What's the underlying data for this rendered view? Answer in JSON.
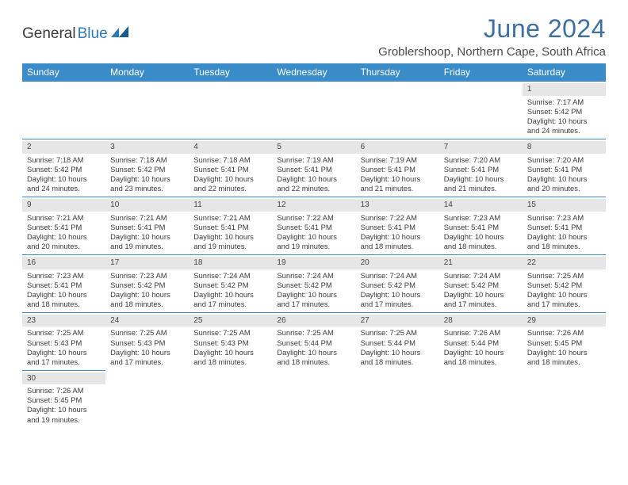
{
  "logo": {
    "part1": "General",
    "part2": "Blue"
  },
  "title": "June 2024",
  "location": "Groblershoop, Northern Cape, South Africa",
  "colors": {
    "header_bg": "#3a8cc9",
    "header_text": "#ffffff",
    "title_color": "#3f6f9c",
    "daynum_bg": "#e6e6e6",
    "border": "#3a8cc9",
    "body_text": "#3b3b3b",
    "logo_accent": "#2f78b7"
  },
  "weekdays": [
    "Sunday",
    "Monday",
    "Tuesday",
    "Wednesday",
    "Thursday",
    "Friday",
    "Saturday"
  ],
  "weeks": [
    [
      null,
      null,
      null,
      null,
      null,
      null,
      {
        "n": "1",
        "sr": "Sunrise: 7:17 AM",
        "ss": "Sunset: 5:42 PM",
        "dl1": "Daylight: 10 hours",
        "dl2": "and 24 minutes."
      }
    ],
    [
      {
        "n": "2",
        "sr": "Sunrise: 7:18 AM",
        "ss": "Sunset: 5:42 PM",
        "dl1": "Daylight: 10 hours",
        "dl2": "and 24 minutes."
      },
      {
        "n": "3",
        "sr": "Sunrise: 7:18 AM",
        "ss": "Sunset: 5:42 PM",
        "dl1": "Daylight: 10 hours",
        "dl2": "and 23 minutes."
      },
      {
        "n": "4",
        "sr": "Sunrise: 7:18 AM",
        "ss": "Sunset: 5:41 PM",
        "dl1": "Daylight: 10 hours",
        "dl2": "and 22 minutes."
      },
      {
        "n": "5",
        "sr": "Sunrise: 7:19 AM",
        "ss": "Sunset: 5:41 PM",
        "dl1": "Daylight: 10 hours",
        "dl2": "and 22 minutes."
      },
      {
        "n": "6",
        "sr": "Sunrise: 7:19 AM",
        "ss": "Sunset: 5:41 PM",
        "dl1": "Daylight: 10 hours",
        "dl2": "and 21 minutes."
      },
      {
        "n": "7",
        "sr": "Sunrise: 7:20 AM",
        "ss": "Sunset: 5:41 PM",
        "dl1": "Daylight: 10 hours",
        "dl2": "and 21 minutes."
      },
      {
        "n": "8",
        "sr": "Sunrise: 7:20 AM",
        "ss": "Sunset: 5:41 PM",
        "dl1": "Daylight: 10 hours",
        "dl2": "and 20 minutes."
      }
    ],
    [
      {
        "n": "9",
        "sr": "Sunrise: 7:21 AM",
        "ss": "Sunset: 5:41 PM",
        "dl1": "Daylight: 10 hours",
        "dl2": "and 20 minutes."
      },
      {
        "n": "10",
        "sr": "Sunrise: 7:21 AM",
        "ss": "Sunset: 5:41 PM",
        "dl1": "Daylight: 10 hours",
        "dl2": "and 19 minutes."
      },
      {
        "n": "11",
        "sr": "Sunrise: 7:21 AM",
        "ss": "Sunset: 5:41 PM",
        "dl1": "Daylight: 10 hours",
        "dl2": "and 19 minutes."
      },
      {
        "n": "12",
        "sr": "Sunrise: 7:22 AM",
        "ss": "Sunset: 5:41 PM",
        "dl1": "Daylight: 10 hours",
        "dl2": "and 19 minutes."
      },
      {
        "n": "13",
        "sr": "Sunrise: 7:22 AM",
        "ss": "Sunset: 5:41 PM",
        "dl1": "Daylight: 10 hours",
        "dl2": "and 18 minutes."
      },
      {
        "n": "14",
        "sr": "Sunrise: 7:23 AM",
        "ss": "Sunset: 5:41 PM",
        "dl1": "Daylight: 10 hours",
        "dl2": "and 18 minutes."
      },
      {
        "n": "15",
        "sr": "Sunrise: 7:23 AM",
        "ss": "Sunset: 5:41 PM",
        "dl1": "Daylight: 10 hours",
        "dl2": "and 18 minutes."
      }
    ],
    [
      {
        "n": "16",
        "sr": "Sunrise: 7:23 AM",
        "ss": "Sunset: 5:41 PM",
        "dl1": "Daylight: 10 hours",
        "dl2": "and 18 minutes."
      },
      {
        "n": "17",
        "sr": "Sunrise: 7:23 AM",
        "ss": "Sunset: 5:42 PM",
        "dl1": "Daylight: 10 hours",
        "dl2": "and 18 minutes."
      },
      {
        "n": "18",
        "sr": "Sunrise: 7:24 AM",
        "ss": "Sunset: 5:42 PM",
        "dl1": "Daylight: 10 hours",
        "dl2": "and 17 minutes."
      },
      {
        "n": "19",
        "sr": "Sunrise: 7:24 AM",
        "ss": "Sunset: 5:42 PM",
        "dl1": "Daylight: 10 hours",
        "dl2": "and 17 minutes."
      },
      {
        "n": "20",
        "sr": "Sunrise: 7:24 AM",
        "ss": "Sunset: 5:42 PM",
        "dl1": "Daylight: 10 hours",
        "dl2": "and 17 minutes."
      },
      {
        "n": "21",
        "sr": "Sunrise: 7:24 AM",
        "ss": "Sunset: 5:42 PM",
        "dl1": "Daylight: 10 hours",
        "dl2": "and 17 minutes."
      },
      {
        "n": "22",
        "sr": "Sunrise: 7:25 AM",
        "ss": "Sunset: 5:42 PM",
        "dl1": "Daylight: 10 hours",
        "dl2": "and 17 minutes."
      }
    ],
    [
      {
        "n": "23",
        "sr": "Sunrise: 7:25 AM",
        "ss": "Sunset: 5:43 PM",
        "dl1": "Daylight: 10 hours",
        "dl2": "and 17 minutes."
      },
      {
        "n": "24",
        "sr": "Sunrise: 7:25 AM",
        "ss": "Sunset: 5:43 PM",
        "dl1": "Daylight: 10 hours",
        "dl2": "and 17 minutes."
      },
      {
        "n": "25",
        "sr": "Sunrise: 7:25 AM",
        "ss": "Sunset: 5:43 PM",
        "dl1": "Daylight: 10 hours",
        "dl2": "and 18 minutes."
      },
      {
        "n": "26",
        "sr": "Sunrise: 7:25 AM",
        "ss": "Sunset: 5:44 PM",
        "dl1": "Daylight: 10 hours",
        "dl2": "and 18 minutes."
      },
      {
        "n": "27",
        "sr": "Sunrise: 7:25 AM",
        "ss": "Sunset: 5:44 PM",
        "dl1": "Daylight: 10 hours",
        "dl2": "and 18 minutes."
      },
      {
        "n": "28",
        "sr": "Sunrise: 7:26 AM",
        "ss": "Sunset: 5:44 PM",
        "dl1": "Daylight: 10 hours",
        "dl2": "and 18 minutes."
      },
      {
        "n": "29",
        "sr": "Sunrise: 7:26 AM",
        "ss": "Sunset: 5:45 PM",
        "dl1": "Daylight: 10 hours",
        "dl2": "and 18 minutes."
      }
    ],
    [
      {
        "n": "30",
        "sr": "Sunrise: 7:26 AM",
        "ss": "Sunset: 5:45 PM",
        "dl1": "Daylight: 10 hours",
        "dl2": "and 19 minutes."
      },
      null,
      null,
      null,
      null,
      null,
      null
    ]
  ]
}
